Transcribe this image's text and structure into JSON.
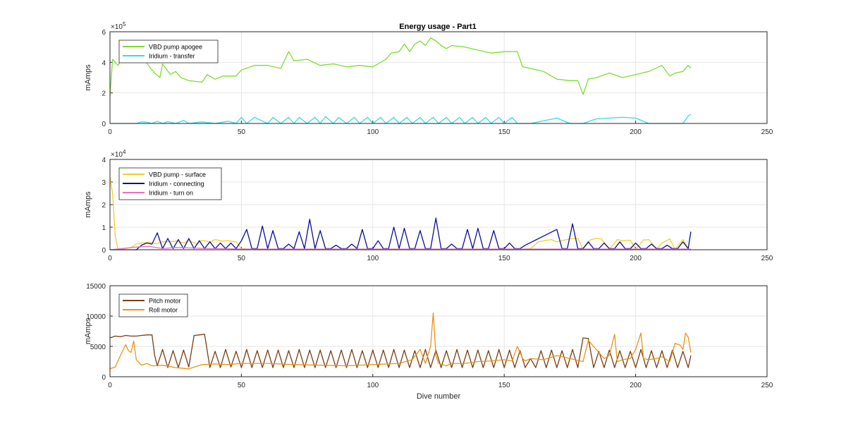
{
  "title": "Energy usage - Part1",
  "chart_data": [
    {
      "type": "line",
      "title": "Energy usage - Part1",
      "xlabel": "",
      "ylabel": "mAmps",
      "exponent": "5",
      "xlim": [
        0,
        250
      ],
      "ylim": [
        0,
        600000
      ],
      "xticks": [
        "0",
        "50",
        "100",
        "150",
        "200",
        "250"
      ],
      "yticks": [
        "0",
        "2",
        "4",
        "6"
      ],
      "grid": true,
      "legend_position": "top-left",
      "series": [
        {
          "name": "VBD pump apogee",
          "color": "#7ddd33",
          "x": [
            0,
            1,
            3,
            5,
            7,
            9,
            11,
            13,
            15,
            17,
            19,
            20,
            23,
            25,
            27,
            30,
            35,
            37,
            40,
            43,
            48,
            50,
            55,
            60,
            65,
            68,
            70,
            75,
            80,
            85,
            90,
            95,
            100,
            105,
            107,
            110,
            112,
            114,
            116,
            118,
            120,
            122,
            124,
            126,
            128,
            130,
            135,
            140,
            145,
            150,
            155,
            157,
            160,
            165,
            170,
            175,
            178,
            180,
            182,
            185,
            190,
            195,
            200,
            205,
            210,
            213,
            215,
            218,
            220,
            221
          ],
          "values": [
            180000,
            420000,
            380000,
            430000,
            410000,
            400000,
            420000,
            420000,
            370000,
            330000,
            300000,
            390000,
            320000,
            340000,
            300000,
            280000,
            270000,
            320000,
            290000,
            310000,
            310000,
            350000,
            380000,
            380000,
            360000,
            470000,
            410000,
            420000,
            380000,
            390000,
            370000,
            380000,
            370000,
            420000,
            460000,
            470000,
            520000,
            470000,
            520000,
            540000,
            510000,
            560000,
            540000,
            510000,
            490000,
            510000,
            500000,
            480000,
            460000,
            470000,
            470000,
            370000,
            360000,
            340000,
            290000,
            280000,
            280000,
            190000,
            290000,
            300000,
            330000,
            300000,
            320000,
            340000,
            380000,
            310000,
            330000,
            340000,
            380000,
            360000
          ]
        },
        {
          "name": "Iridium - transfer",
          "color": "#33dde8",
          "x": [
            0,
            10,
            12,
            14,
            16,
            18,
            20,
            22,
            25,
            28,
            30,
            35,
            40,
            45,
            48,
            50,
            52,
            55,
            60,
            62,
            65,
            68,
            70,
            72,
            75,
            78,
            80,
            82,
            85,
            87,
            90,
            93,
            95,
            98,
            100,
            103,
            105,
            108,
            110,
            113,
            115,
            118,
            120,
            123,
            125,
            128,
            130,
            133,
            135,
            138,
            140,
            143,
            145,
            148,
            150,
            153,
            155,
            160,
            170,
            175,
            180,
            185,
            190,
            195,
            200,
            205,
            210,
            215,
            218,
            220,
            221
          ],
          "values": [
            0,
            0,
            10000,
            8000,
            0,
            15000,
            0,
            12000,
            0,
            20000,
            0,
            10000,
            0,
            15000,
            0,
            40000,
            0,
            40000,
            0,
            40000,
            0,
            40000,
            0,
            40000,
            0,
            40000,
            0,
            45000,
            0,
            40000,
            0,
            40000,
            0,
            40000,
            0,
            40000,
            0,
            40000,
            0,
            40000,
            0,
            40000,
            0,
            40000,
            0,
            40000,
            0,
            40000,
            0,
            40000,
            0,
            40000,
            0,
            40000,
            0,
            40000,
            0,
            0,
            35000,
            0,
            0,
            30000,
            35000,
            40000,
            35000,
            0,
            0,
            0,
            0,
            50000,
            60000
          ]
        }
      ]
    },
    {
      "type": "line",
      "title": "",
      "xlabel": "",
      "ylabel": "mAmps",
      "exponent": "4",
      "xlim": [
        0,
        250
      ],
      "ylim": [
        0,
        40000
      ],
      "xticks": [
        "0",
        "50",
        "100",
        "150",
        "200",
        "250"
      ],
      "yticks": [
        "0",
        "1",
        "2",
        "3",
        "4"
      ],
      "grid": true,
      "legend_position": "top-left",
      "series": [
        {
          "name": "VBD pump - surface",
          "color": "#f2cf29",
          "x": [
            0,
            1,
            2,
            3,
            5,
            8,
            10,
            12,
            15,
            18,
            20,
            25,
            28,
            30,
            33,
            35,
            38,
            40,
            43,
            45,
            48,
            50,
            55,
            60,
            65,
            70,
            75,
            80,
            85,
            90,
            95,
            100,
            105,
            110,
            115,
            120,
            125,
            130,
            135,
            140,
            145,
            150,
            155,
            160,
            163,
            165,
            168,
            170,
            175,
            178,
            180,
            183,
            185,
            187,
            190,
            193,
            195,
            198,
            200,
            203,
            205,
            208,
            210,
            213,
            215,
            218,
            220
          ],
          "values": [
            32000,
            25000,
            6000,
            500,
            300,
            1000,
            2500,
            3000,
            3200,
            2800,
            3500,
            3800,
            3000,
            4000,
            2500,
            4200,
            3500,
            4500,
            3800,
            4000,
            3500,
            500,
            0,
            0,
            0,
            0,
            0,
            0,
            0,
            0,
            0,
            0,
            0,
            0,
            0,
            0,
            0,
            0,
            0,
            0,
            0,
            0,
            0,
            500,
            3500,
            4000,
            4500,
            3500,
            4800,
            5000,
            300,
            4500,
            5000,
            4800,
            200,
            4500,
            4000,
            4200,
            300,
            4300,
            4500,
            300,
            3000,
            4800,
            200,
            4500,
            600
          ]
        },
        {
          "name": "Iridium - connecting",
          "color": "#0a0f96",
          "x": [
            0,
            10,
            12,
            14,
            16,
            18,
            20,
            22,
            24,
            26,
            28,
            30,
            32,
            34,
            36,
            38,
            40,
            42,
            44,
            46,
            48,
            50,
            52,
            54,
            56,
            58,
            60,
            62,
            64,
            66,
            68,
            70,
            72,
            74,
            76,
            78,
            80,
            82,
            84,
            86,
            88,
            90,
            92,
            94,
            96,
            98,
            100,
            102,
            104,
            106,
            108,
            110,
            112,
            114,
            116,
            118,
            120,
            122,
            124,
            126,
            128,
            130,
            132,
            134,
            136,
            138,
            140,
            142,
            144,
            146,
            148,
            150,
            152,
            154,
            156,
            158,
            170,
            172,
            174,
            176,
            178,
            180,
            182,
            184,
            186,
            188,
            190,
            192,
            194,
            196,
            198,
            200,
            202,
            204,
            206,
            208,
            210,
            212,
            214,
            216,
            218,
            220,
            221
          ],
          "values": [
            0,
            0,
            2000,
            3000,
            2500,
            7500,
            500,
            5000,
            500,
            4500,
            500,
            5000,
            500,
            4000,
            500,
            3500,
            500,
            3000,
            500,
            3000,
            500,
            4000,
            9000,
            500,
            500,
            10500,
            500,
            8500,
            500,
            500,
            2500,
            500,
            8000,
            500,
            13500,
            500,
            8500,
            500,
            500,
            2000,
            500,
            500,
            2500,
            500,
            9000,
            500,
            500,
            4000,
            500,
            500,
            10000,
            500,
            9500,
            500,
            500,
            8500,
            500,
            500,
            14000,
            500,
            500,
            2500,
            500,
            500,
            9000,
            500,
            9500,
            500,
            500,
            8500,
            500,
            500,
            3000,
            500,
            500,
            2000,
            9000,
            500,
            500,
            11500,
            500,
            500,
            3500,
            500,
            500,
            3000,
            500,
            500,
            3500,
            500,
            500,
            3000,
            500,
            500,
            2500,
            500,
            500,
            2000,
            500,
            500,
            3500,
            500,
            8000
          ]
        },
        {
          "name": "Iridium - turn on",
          "color": "#e86fc4",
          "x": [
            0,
            10,
            15,
            20,
            25,
            30,
            35,
            40,
            50,
            100,
            150,
            200,
            221
          ],
          "values": [
            0,
            1200,
            1500,
            500,
            1000,
            800,
            600,
            500,
            300,
            300,
            300,
            300,
            300
          ]
        }
      ]
    },
    {
      "type": "line",
      "title": "",
      "xlabel": "Dive number",
      "ylabel": "mAmps",
      "xlim": [
        0,
        250
      ],
      "ylim": [
        0,
        15000
      ],
      "xticks": [
        "0",
        "50",
        "100",
        "150",
        "200",
        "250"
      ],
      "yticks": [
        "0",
        "5000",
        "10000",
        "15000"
      ],
      "grid": true,
      "legend_position": "top-left",
      "series": [
        {
          "name": "Pitch motor",
          "color": "#7a3d12",
          "x": [
            0,
            2,
            4,
            6,
            8,
            10,
            12,
            14,
            16,
            17,
            18,
            20,
            22,
            24,
            26,
            28,
            30,
            32,
            34,
            36,
            38,
            40,
            42,
            44,
            46,
            48,
            50,
            52,
            54,
            56,
            58,
            60,
            62,
            64,
            66,
            68,
            70,
            72,
            74,
            76,
            78,
            80,
            82,
            84,
            86,
            88,
            90,
            92,
            94,
            96,
            98,
            100,
            102,
            104,
            106,
            108,
            110,
            112,
            114,
            116,
            118,
            120,
            122,
            124,
            126,
            128,
            130,
            132,
            134,
            136,
            138,
            140,
            142,
            144,
            146,
            148,
            150,
            152,
            154,
            156,
            158,
            160,
            162,
            164,
            166,
            168,
            170,
            172,
            174,
            176,
            178,
            180,
            182,
            184,
            186,
            188,
            190,
            192,
            194,
            196,
            198,
            200,
            202,
            204,
            206,
            208,
            210,
            212,
            214,
            216,
            218,
            220,
            221
          ],
          "values": [
            6400,
            6700,
            6600,
            6800,
            6700,
            6700,
            6800,
            6900,
            6900,
            3500,
            1800,
            4500,
            1500,
            4300,
            1500,
            4400,
            1600,
            6800,
            6900,
            7000,
            1500,
            4200,
            1500,
            4500,
            1600,
            4200,
            1500,
            4500,
            1500,
            4300,
            1500,
            4400,
            1500,
            4400,
            1500,
            4300,
            1500,
            4500,
            1500,
            4400,
            1500,
            4400,
            1500,
            4300,
            1500,
            4400,
            1500,
            4500,
            1500,
            4300,
            1500,
            4400,
            1500,
            4400,
            1500,
            4500,
            1500,
            4400,
            1500,
            4300,
            1500,
            4500,
            1500,
            4400,
            1500,
            4300,
            1500,
            4500,
            1500,
            4400,
            1500,
            4400,
            1500,
            4300,
            1500,
            4500,
            1500,
            4400,
            1500,
            4300,
            1500,
            3000,
            1500,
            4300,
            1500,
            4400,
            1500,
            4300,
            1500,
            4500,
            1500,
            6400,
            6300,
            1500,
            4200,
            1500,
            4400,
            1500,
            4300,
            1500,
            4200,
            1500,
            4500,
            1500,
            4300,
            1500,
            4300,
            1500,
            4400,
            1500,
            4200,
            1500,
            3500
          ]
        },
        {
          "name": "Roll motor",
          "color": "#e99515",
          "x": [
            0,
            2,
            4,
            6,
            7,
            8,
            9,
            10,
            12,
            14,
            16,
            18,
            20,
            25,
            30,
            35,
            40,
            45,
            50,
            60,
            70,
            80,
            90,
            100,
            110,
            115,
            118,
            120,
            122,
            123,
            124,
            125,
            128,
            130,
            135,
            140,
            145,
            150,
            153,
            155,
            157,
            158,
            160,
            165,
            170,
            175,
            180,
            182,
            185,
            188,
            190,
            192,
            193,
            195,
            198,
            200,
            202,
            203,
            205,
            208,
            210,
            213,
            215,
            217,
            218,
            219,
            220,
            221
          ],
          "values": [
            1300,
            1600,
            3500,
            5300,
            4300,
            4000,
            5900,
            2800,
            1900,
            2200,
            1800,
            1800,
            1900,
            1500,
            1300,
            2000,
            2100,
            2000,
            2200,
            2200,
            2000,
            1900,
            1800,
            2000,
            2200,
            2800,
            4500,
            2200,
            5000,
            10500,
            3500,
            2200,
            1800,
            2200,
            2200,
            2500,
            2600,
            2800,
            2600,
            5000,
            3000,
            2600,
            3000,
            2800,
            3500,
            3000,
            2500,
            6000,
            4500,
            3000,
            3500,
            7000,
            2500,
            2800,
            3000,
            4500,
            7200,
            3000,
            2800,
            3000,
            3300,
            2500,
            5500,
            5200,
            4500,
            7200,
            6500,
            4000
          ]
        }
      ]
    }
  ]
}
